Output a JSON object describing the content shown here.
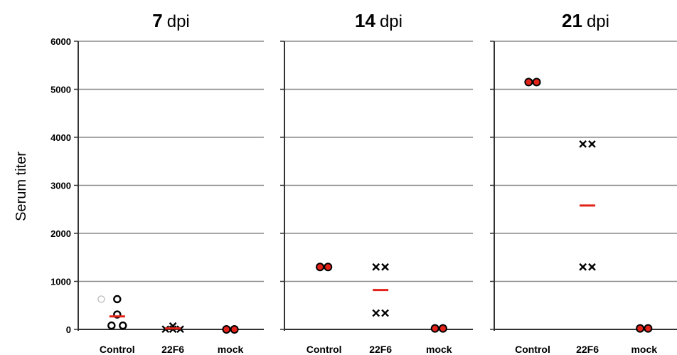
{
  "chart_data": {
    "type": "scatter",
    "ylabel": "Serum titer",
    "ylim": [
      0,
      6000
    ],
    "yticks": [
      0,
      1000,
      2000,
      3000,
      4000,
      5000,
      6000
    ],
    "grid": true,
    "categories": [
      "Control",
      "22F6",
      "mock"
    ],
    "panels": [
      {
        "title_num": "7",
        "title_unit": "dpi",
        "groups": [
          {
            "category": "Control",
            "marker": "circle",
            "mean": 270,
            "points": [
              {
                "x": -0.28,
                "y": 630,
                "faded": true
              },
              {
                "x": 0.0,
                "y": 630
              },
              {
                "x": 0.0,
                "y": 310
              },
              {
                "x": -0.1,
                "y": 80
              },
              {
                "x": 0.1,
                "y": 80
              }
            ]
          },
          {
            "category": "22F6",
            "marker": "x",
            "mean": 20,
            "points": [
              {
                "x": -0.13,
                "y": 5
              },
              {
                "x": 0.0,
                "y": 70
              },
              {
                "x": 0.0,
                "y": 5
              },
              {
                "x": 0.13,
                "y": 5
              }
            ]
          },
          {
            "category": "mock",
            "marker": "dot",
            "mean": null,
            "points": [
              {
                "x": -0.07,
                "y": 0
              },
              {
                "x": 0.07,
                "y": 0
              }
            ]
          }
        ]
      },
      {
        "title_num": "14",
        "title_unit": "dpi",
        "groups": [
          {
            "category": "Control",
            "marker": "dot",
            "mean": null,
            "points": [
              {
                "x": -0.07,
                "y": 1300
              },
              {
                "x": 0.07,
                "y": 1300
              }
            ]
          },
          {
            "category": "22F6",
            "marker": "x",
            "mean": 820,
            "points": [
              {
                "x": -0.08,
                "y": 1300
              },
              {
                "x": 0.08,
                "y": 1300
              },
              {
                "x": -0.08,
                "y": 340
              },
              {
                "x": 0.08,
                "y": 340
              }
            ]
          },
          {
            "category": "mock",
            "marker": "dot",
            "mean": null,
            "points": [
              {
                "x": -0.07,
                "y": 20
              },
              {
                "x": 0.07,
                "y": 20
              }
            ]
          }
        ]
      },
      {
        "title_num": "21",
        "title_unit": "dpi",
        "groups": [
          {
            "category": "Control",
            "marker": "dot",
            "mean": null,
            "points": [
              {
                "x": -0.07,
                "y": 5150
              },
              {
                "x": 0.07,
                "y": 5150
              }
            ]
          },
          {
            "category": "22F6",
            "marker": "x",
            "mean": 2580,
            "points": [
              {
                "x": -0.08,
                "y": 3860
              },
              {
                "x": 0.08,
                "y": 3860
              },
              {
                "x": -0.08,
                "y": 1300
              },
              {
                "x": 0.08,
                "y": 1300
              }
            ]
          },
          {
            "category": "mock",
            "marker": "dot",
            "mean": null,
            "points": [
              {
                "x": -0.07,
                "y": 20
              },
              {
                "x": 0.07,
                "y": 20
              }
            ]
          }
        ]
      }
    ],
    "colors": {
      "mean_line": "#e2231a",
      "dot_fill": "#e2231a",
      "marker": "#000000",
      "grid": "#8a8a8a",
      "axis": "#333333",
      "faded": "#b5b5b5"
    }
  }
}
